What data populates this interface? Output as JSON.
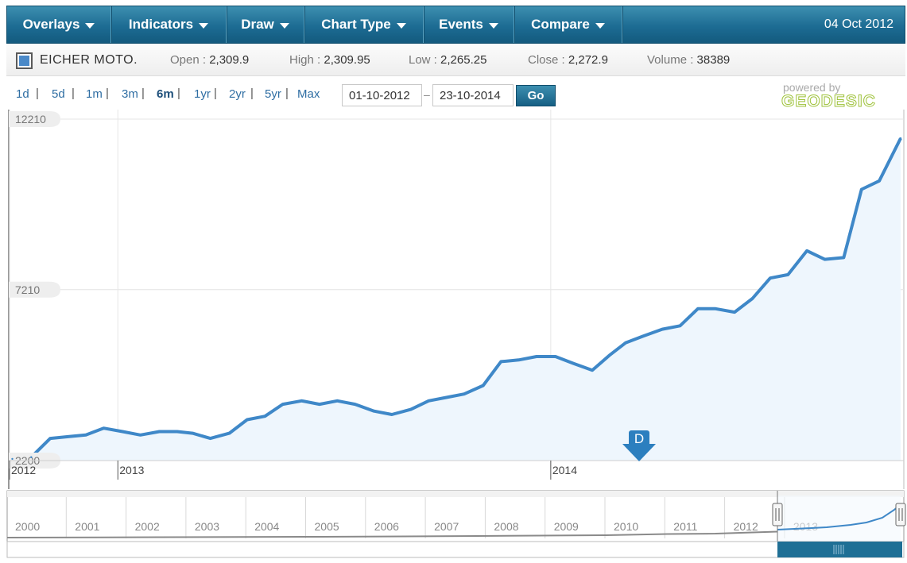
{
  "toolbar": {
    "menus": [
      {
        "label": "Overlays"
      },
      {
        "label": "Indicators"
      },
      {
        "label": "Draw"
      },
      {
        "label": "Chart Type"
      },
      {
        "label": "Events"
      },
      {
        "label": "Compare"
      }
    ],
    "date": "04 Oct 2012"
  },
  "quote": {
    "symbol": "EICHER MOTO.",
    "swatch_color": "#4a89c8",
    "open_label": "Open : ",
    "open": "2,309.9",
    "high_label": "High : ",
    "high": "2,309.95",
    "low_label": "Low : ",
    "low": "2,265.25",
    "close_label": "Close : ",
    "close": "2,272.9",
    "volume_label": "Volume : ",
    "volume": "38389"
  },
  "range": {
    "buttons": [
      "1d",
      "5d",
      "1m",
      "3m",
      "6m",
      "1yr",
      "2yr",
      "5yr",
      "Max"
    ],
    "active": "6m",
    "from": "01-10-2012",
    "to": "23-10-2014",
    "go_label": "Go"
  },
  "branding": {
    "powered": "powered by",
    "name": "GEODESIC"
  },
  "chart_data": {
    "type": "area",
    "series_color": "#3f88c8",
    "fill_color": "#eef6fd",
    "y_ticks": [
      2200,
      7210,
      12210
    ],
    "ylim": [
      2200,
      12210
    ],
    "x_labels": [
      {
        "label": "2012",
        "x": "2012-10-01"
      },
      {
        "label": "2013",
        "x": "2013-01-01"
      },
      {
        "label": "2014",
        "x": "2014-01-01"
      }
    ],
    "xlim": [
      "2012-10-01",
      "2014-10-23"
    ],
    "series": [
      {
        "x": [
          "2012-10-04",
          "2012-10-20",
          "2012-11-05",
          "2012-11-20",
          "2012-12-05",
          "2012-12-20",
          "2013-01-05",
          "2013-01-20",
          "2013-02-05",
          "2013-02-20",
          "2013-03-05",
          "2013-03-20",
          "2013-04-05",
          "2013-04-20",
          "2013-05-05",
          "2013-05-20",
          "2013-06-05",
          "2013-06-20",
          "2013-07-05",
          "2013-07-20",
          "2013-08-05",
          "2013-08-20",
          "2013-09-05",
          "2013-09-20",
          "2013-10-05",
          "2013-10-20",
          "2013-11-05",
          "2013-11-20",
          "2013-12-05",
          "2013-12-20",
          "2014-01-05",
          "2014-01-20",
          "2014-02-05",
          "2014-02-20",
          "2014-03-05",
          "2014-03-20",
          "2014-04-05",
          "2014-04-20",
          "2014-05-05",
          "2014-05-20",
          "2014-06-05",
          "2014-06-20",
          "2014-07-05",
          "2014-07-20",
          "2014-08-05",
          "2014-08-20",
          "2014-09-05",
          "2014-09-20",
          "2014-10-05",
          "2014-10-23"
        ],
        "y": [
          2250,
          2300,
          2850,
          2900,
          2950,
          3150,
          3050,
          2950,
          3050,
          3050,
          3000,
          2850,
          3000,
          3400,
          3500,
          3850,
          3950,
          3850,
          3950,
          3850,
          3650,
          3550,
          3700,
          3950,
          4050,
          4150,
          4400,
          5100,
          5150,
          5250,
          5250,
          5050,
          4850,
          5300,
          5650,
          5850,
          6050,
          6150,
          6650,
          6650,
          6550,
          6950,
          7550,
          7650,
          8350,
          8100,
          8150,
          10150,
          10400,
          11650
        ]
      }
    ],
    "navigator": {
      "labels": [
        "2000",
        "2001",
        "2002",
        "2003",
        "2004",
        "2005",
        "2006",
        "2007",
        "2008",
        "2009",
        "2010",
        "2011",
        "2012",
        "2013"
      ]
    },
    "event_marker": "D"
  }
}
